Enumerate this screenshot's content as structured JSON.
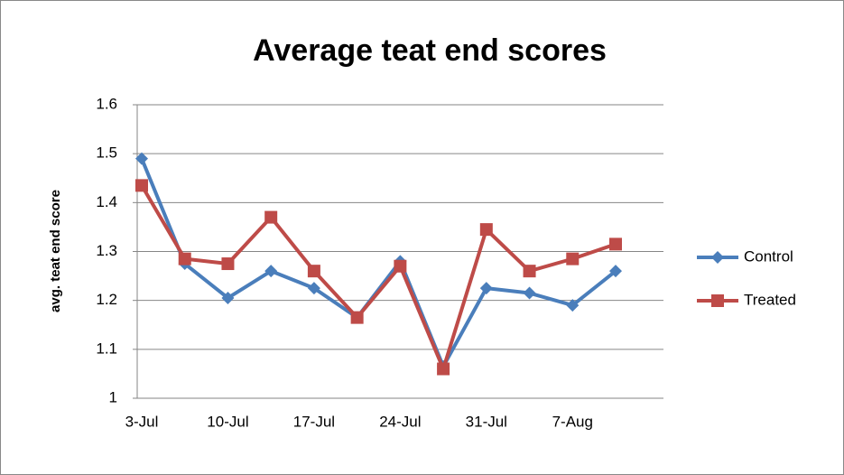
{
  "chart_data": {
    "type": "line",
    "title": "Average teat end scores",
    "y_label": "avg. teat end score",
    "categories": [
      "3-Jul",
      null,
      "10-Jul",
      null,
      "17-Jul",
      null,
      "24-Jul",
      null,
      "31-Jul",
      null,
      "7-Aug",
      null
    ],
    "series": [
      {
        "name": "Control",
        "color": "#4a7ebb",
        "marker": "diamond",
        "values": [
          1.49,
          1.275,
          1.205,
          1.26,
          1.225,
          1.165,
          1.28,
          1.065,
          1.225,
          1.215,
          1.19,
          1.26
        ]
      },
      {
        "name": "Treated",
        "color": "#be4b48",
        "marker": "square",
        "values": [
          1.435,
          1.285,
          1.275,
          1.37,
          1.26,
          1.165,
          1.27,
          1.06,
          1.345,
          1.26,
          1.285,
          1.315
        ]
      }
    ],
    "ylim": [
      1,
      1.6
    ],
    "yticks": [
      1,
      1.1,
      1.2,
      1.3,
      1.4,
      1.5,
      1.6
    ],
    "grid": true,
    "legend": "right"
  }
}
